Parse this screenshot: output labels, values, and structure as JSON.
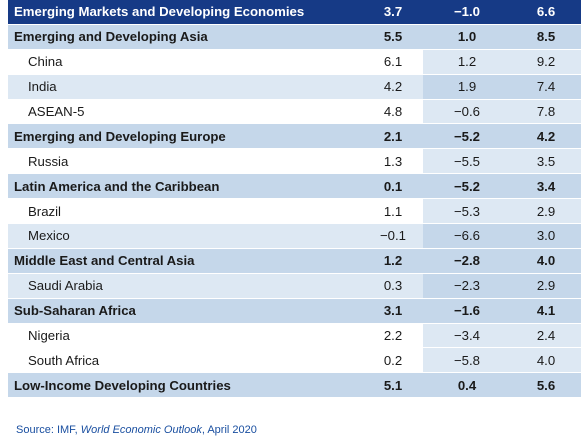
{
  "header": {
    "name": "Emerging Markets and Developing Economies",
    "v1": "3.7",
    "v2": "−1.0",
    "v3": "6.6"
  },
  "rows": [
    {
      "type": "group",
      "name": "Emerging and Developing Asia",
      "v1": "5.5",
      "v2": "1.0",
      "v3": "8.5"
    },
    {
      "type": "sub",
      "shade": "light",
      "name": "China",
      "v1": "6.1",
      "v2": "1.2",
      "v3": "9.2"
    },
    {
      "type": "sub",
      "shade": "tint",
      "name": "India",
      "v1": "4.2",
      "v2": "1.9",
      "v3": "7.4"
    },
    {
      "type": "sub",
      "shade": "light",
      "name": "ASEAN-5",
      "v1": "4.8",
      "v2": "−0.6",
      "v3": "7.8"
    },
    {
      "type": "group",
      "name": "Emerging and Developing Europe",
      "v1": "2.1",
      "v2": "−5.2",
      "v3": "4.2"
    },
    {
      "type": "sub",
      "shade": "light",
      "name": "Russia",
      "v1": "1.3",
      "v2": "−5.5",
      "v3": "3.5"
    },
    {
      "type": "group",
      "name": "Latin America and the Caribbean",
      "v1": "0.1",
      "v2": "−5.2",
      "v3": "3.4"
    },
    {
      "type": "sub",
      "shade": "light",
      "name": "Brazil",
      "v1": "1.1",
      "v2": "−5.3",
      "v3": "2.9"
    },
    {
      "type": "sub",
      "shade": "tint",
      "name": "Mexico",
      "v1": "−0.1",
      "v2": "−6.6",
      "v3": "3.0"
    },
    {
      "type": "group",
      "name": "Middle East and Central Asia",
      "v1": "1.2",
      "v2": "−2.8",
      "v3": "4.0"
    },
    {
      "type": "sub",
      "shade": "tint",
      "name": "Saudi Arabia",
      "v1": "0.3",
      "v2": "−2.3",
      "v3": "2.9"
    },
    {
      "type": "group",
      "name": "Sub-Saharan Africa",
      "v1": "3.1",
      "v2": "−1.6",
      "v3": "4.1"
    },
    {
      "type": "sub",
      "shade": "light",
      "name": "Nigeria",
      "v1": "2.2",
      "v2": "−3.4",
      "v3": "2.4"
    },
    {
      "type": "sub",
      "shade": "light",
      "name": "South Africa",
      "v1": "0.2",
      "v2": "−5.8",
      "v3": "4.0"
    },
    {
      "type": "group",
      "name": "Low-Income Developing Countries",
      "v1": "5.1",
      "v2": "0.4",
      "v3": "5.6"
    }
  ],
  "source": {
    "prefix": "Source: IMF, ",
    "title": "World Economic Outlook",
    "suffix": ", April 2020"
  },
  "colors": {
    "header_bg": "#163a86",
    "group_bg": "#c5d7ea",
    "tint_bg": "#dde8f3",
    "source_text": "#1a4fa0"
  }
}
